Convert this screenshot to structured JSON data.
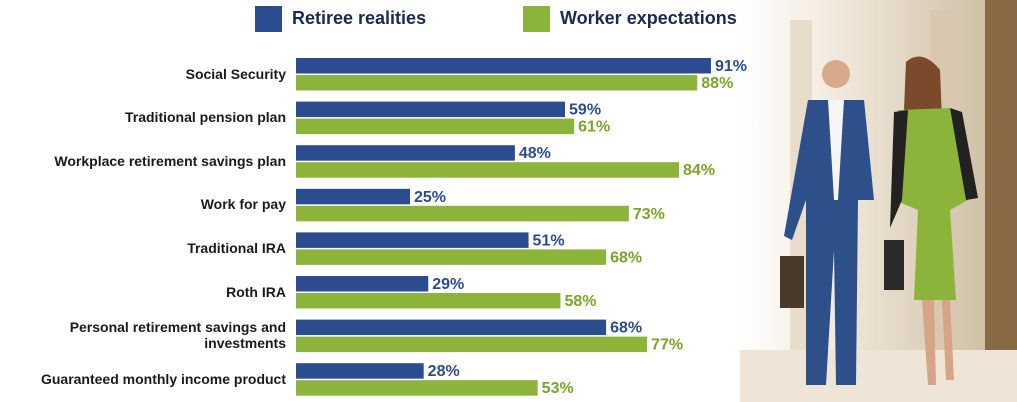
{
  "chart_data": {
    "type": "bar",
    "orientation": "horizontal",
    "categories": [
      "Social Security",
      "Traditional pension plan",
      "Workplace retirement savings plan",
      "Work for pay",
      "Traditional IRA",
      "Roth IRA",
      "Personal retirement savings and investments",
      "Guaranteed monthly income product"
    ],
    "series": [
      {
        "name": "Retiree realities",
        "color": "#2b4c8e",
        "label_color": "#2b4c8e",
        "values": [
          91,
          59,
          48,
          25,
          51,
          29,
          68,
          28
        ],
        "value_labels": [
          "91%",
          "59%",
          "48%",
          "25%",
          "51%",
          "29%",
          "68%",
          "28%"
        ]
      },
      {
        "name": "Worker expectations",
        "color": "#8db43a",
        "label_color": "#7aa52a",
        "values": [
          88,
          61,
          84,
          73,
          68,
          58,
          77,
          53
        ],
        "value_labels": [
          "88%",
          "61%",
          "84%",
          "73%",
          "68%",
          "58%",
          "77%",
          "53%"
        ]
      }
    ]
  }
}
